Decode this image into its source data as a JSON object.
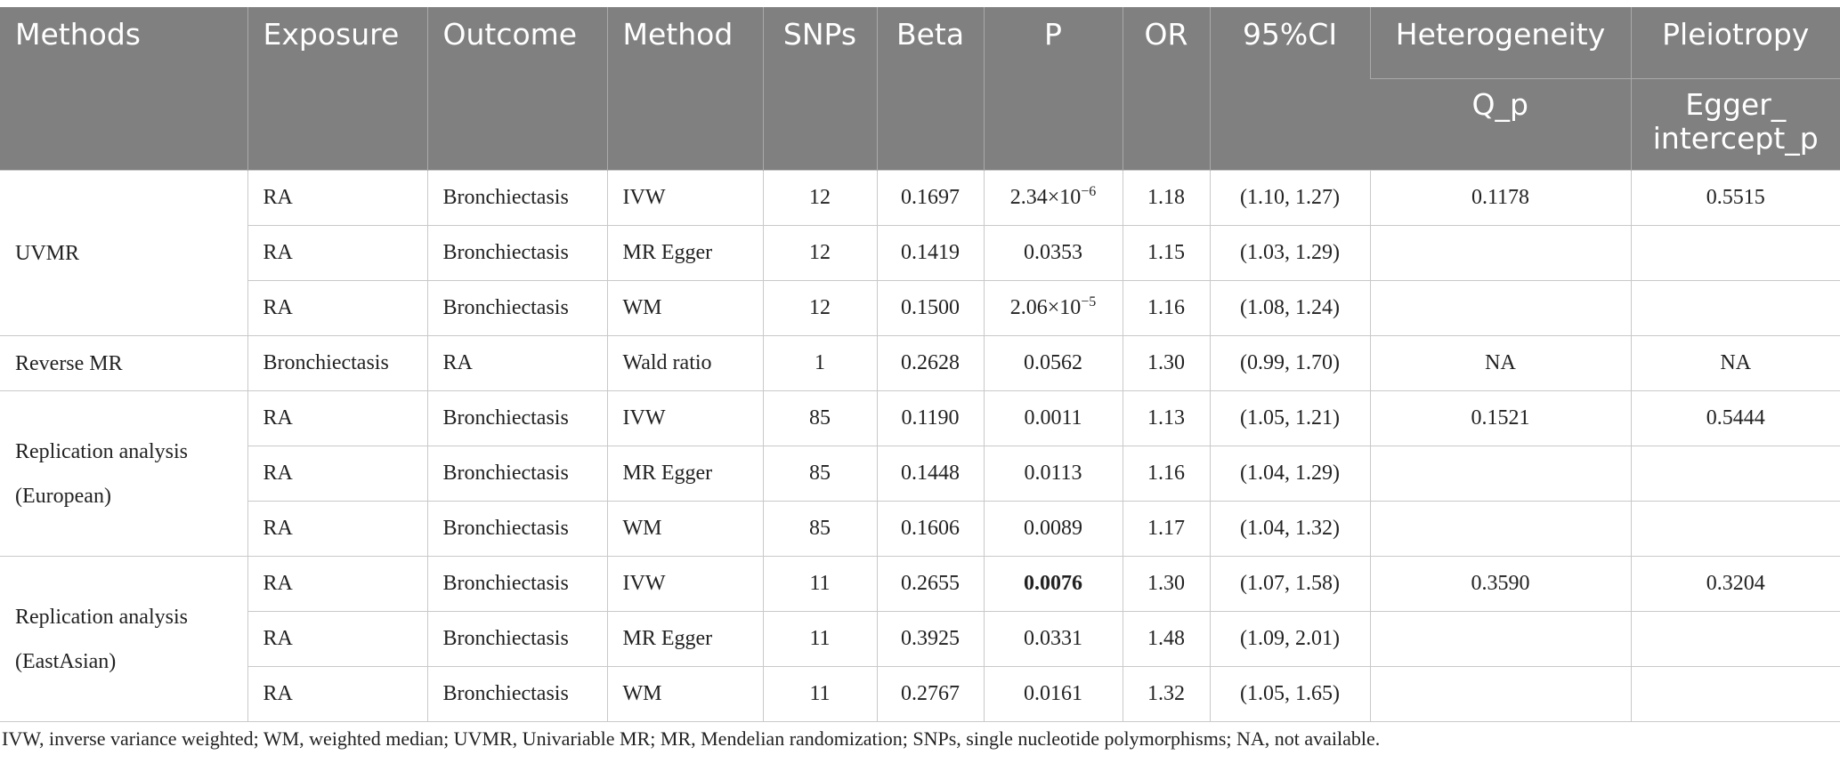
{
  "headers": {
    "methods": "Methods",
    "exposure": "Exposure",
    "outcome": "Outcome",
    "method": "Method",
    "snps": "SNPs",
    "beta": "Beta",
    "p": "P",
    "or": "OR",
    "ci": "95%CI",
    "heterogeneity": "Heterogeneity",
    "pleiotropy": "Pleiotropy",
    "q_p": "Q_p",
    "egger_line1": "Egger_",
    "egger_line2": "intercept_p"
  },
  "groups": [
    {
      "label": "UVMR",
      "rows": [
        {
          "exposure": "RA",
          "outcome": "Bronchiectasis",
          "method": "IVW",
          "snps": "12",
          "beta": "0.1697",
          "p": {
            "mantissa": "2.34",
            "times": "×",
            "base": "10",
            "exp": "−6"
          },
          "or": "1.18",
          "ci": "(1.10, 1.27)",
          "q_p": "0.1178",
          "egger": "0.5515"
        },
        {
          "exposure": "RA",
          "outcome": "Bronchiectasis",
          "method": "MR Egger",
          "snps": "12",
          "beta": "0.1419",
          "p": "0.0353",
          "or": "1.15",
          "ci": "(1.03, 1.29)",
          "q_p": "",
          "egger": ""
        },
        {
          "exposure": "RA",
          "outcome": "Bronchiectasis",
          "method": "WM",
          "snps": "12",
          "beta": "0.1500",
          "p": {
            "mantissa": "2.06",
            "times": "×",
            "base": "10",
            "exp": "−5"
          },
          "or": "1.16",
          "ci": "(1.08, 1.24)",
          "q_p": "",
          "egger": ""
        }
      ]
    },
    {
      "label": "Reverse MR",
      "rows": [
        {
          "exposure": "Bronchiectasis",
          "outcome": "RA",
          "method": "Wald ratio",
          "snps": "1",
          "beta": "0.2628",
          "p": "0.0562",
          "or": "1.30",
          "ci": "(0.99, 1.70)",
          "q_p": "NA",
          "egger": "NA"
        }
      ]
    },
    {
      "label": "Replication analysis (European)",
      "rows": [
        {
          "exposure": "RA",
          "outcome": "Bronchiectasis",
          "method": "IVW",
          "snps": "85",
          "beta": "0.1190",
          "p": "0.0011",
          "or": "1.13",
          "ci": "(1.05, 1.21)",
          "q_p": "0.1521",
          "egger": "0.5444"
        },
        {
          "exposure": "RA",
          "outcome": "Bronchiectasis",
          "method": "MR Egger",
          "snps": "85",
          "beta": "0.1448",
          "p": "0.0113",
          "or": "1.16",
          "ci": "(1.04, 1.29)",
          "q_p": "",
          "egger": ""
        },
        {
          "exposure": "RA",
          "outcome": "Bronchiectasis",
          "method": "WM",
          "snps": "85",
          "beta": "0.1606",
          "p": "0.0089",
          "or": "1.17",
          "ci": "(1.04, 1.32)",
          "q_p": "",
          "egger": ""
        }
      ]
    },
    {
      "label": "Replication analysis (EastAsian)",
      "rows": [
        {
          "exposure": "RA",
          "outcome": "Bronchiectasis",
          "method": "IVW",
          "snps": "11",
          "beta": "0.2655",
          "p": "0.0076",
          "p_bold": true,
          "or": "1.30",
          "ci": "(1.07, 1.58)",
          "q_p": "0.3590",
          "egger": "0.3204"
        },
        {
          "exposure": "RA",
          "outcome": "Bronchiectasis",
          "method": "MR Egger",
          "snps": "11",
          "beta": "0.3925",
          "p": "0.0331",
          "or": "1.48",
          "ci": "(1.09, 2.01)",
          "q_p": "",
          "egger": ""
        },
        {
          "exposure": "RA",
          "outcome": "Bronchiectasis",
          "method": "WM",
          "snps": "11",
          "beta": "0.2767",
          "p": "0.0161",
          "or": "1.32",
          "ci": "(1.05, 1.65)",
          "q_p": "",
          "egger": ""
        }
      ]
    }
  ],
  "footnote": "IVW, inverse variance weighted; WM, weighted median; UVMR, Univariable MR; MR, Mendelian randomization; SNPs, single nucleotide polymorphisms; NA, not available."
}
